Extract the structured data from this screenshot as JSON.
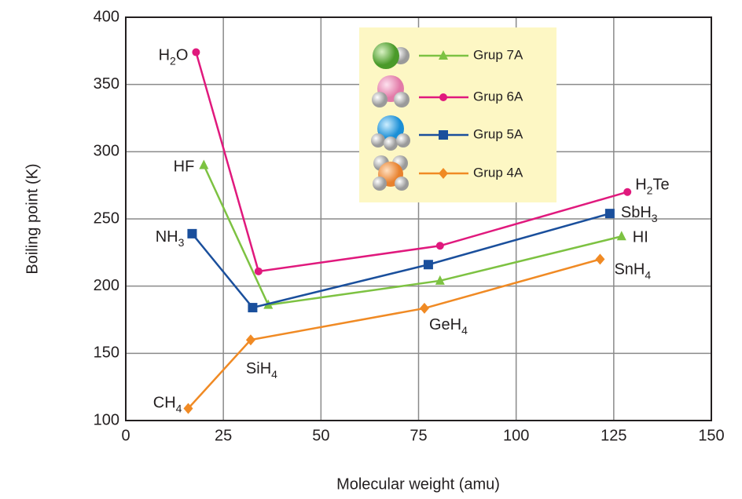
{
  "chart_data": {
    "type": "line",
    "xlabel": "Molecular weight (amu)",
    "ylabel": "Boiling point (K)",
    "xlim": [
      0,
      150
    ],
    "xticks": [
      0,
      25,
      50,
      75,
      100,
      125,
      150
    ],
    "ylim": [
      100,
      400
    ],
    "yticks": [
      100,
      150,
      200,
      250,
      300,
      350,
      400
    ],
    "grid": true,
    "legend": "upper-center",
    "series": [
      {
        "name": "Grup 7A",
        "color": "#7dc242",
        "marker": "triangle",
        "x": [
          20,
          36.5,
          80.5,
          127
        ],
        "values": [
          290,
          186,
          204,
          237
        ],
        "point_labels": [
          [
            "HF"
          ],
          null,
          null,
          [
            "HI"
          ]
        ]
      },
      {
        "name": "Grup 6A",
        "color": "#e0197d",
        "marker": "circle",
        "x": [
          18,
          34,
          80.5,
          128.5
        ],
        "values": [
          374,
          211,
          230,
          270
        ],
        "point_labels": [
          [
            "H",
            "2",
            "O"
          ],
          null,
          null,
          [
            "H",
            "2",
            "Te"
          ]
        ]
      },
      {
        "name": "Grup 5A",
        "color": "#1a4f9c",
        "marker": "square",
        "x": [
          17,
          32.5,
          77.5,
          124
        ],
        "values": [
          239,
          184,
          216,
          254
        ],
        "point_labels": [
          [
            "NH",
            "3"
          ],
          null,
          null,
          [
            "SbH",
            "3"
          ]
        ]
      },
      {
        "name": "Grup 4A",
        "color": "#f08a24",
        "marker": "diamond",
        "x": [
          16,
          32,
          76.5,
          121.5
        ],
        "values": [
          109,
          160,
          183.5,
          220
        ],
        "point_labels": [
          [
            "CH",
            "4"
          ],
          [
            "SiH",
            "4"
          ],
          [
            "GeH",
            "4"
          ],
          [
            "SnH",
            "4"
          ]
        ]
      }
    ]
  }
}
